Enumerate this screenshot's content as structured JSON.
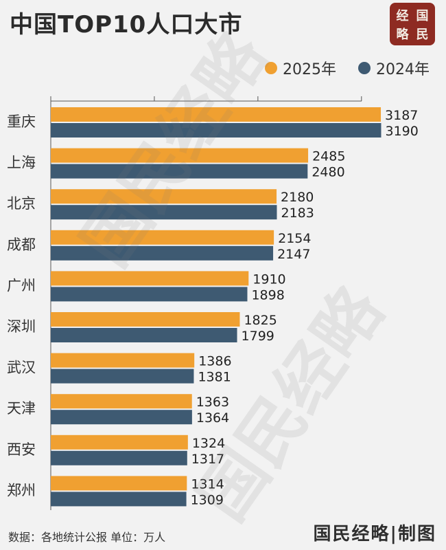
{
  "title": "中国TOP10人口大市",
  "logo": {
    "chars": [
      "经",
      "国",
      "略",
      "民"
    ]
  },
  "colors": {
    "series_2025": "#f0a031",
    "series_2024": "#3e5a72",
    "axis": "#555555"
  },
  "legend": {
    "item_2025": "2025年",
    "item_2024": "2024年"
  },
  "chart_data": {
    "type": "bar",
    "orientation": "horizontal",
    "categories": [
      "重庆",
      "上海",
      "北京",
      "成都",
      "广州",
      "深圳",
      "武汉",
      "天津",
      "西安",
      "郑州"
    ],
    "series": [
      {
        "name": "2025年",
        "values": [
          3187,
          2485,
          2180,
          2154,
          1910,
          1825,
          1386,
          1363,
          1324,
          1314
        ]
      },
      {
        "name": "2024年",
        "values": [
          3190,
          2480,
          2183,
          2147,
          1898,
          1799,
          1381,
          1364,
          1317,
          1309
        ]
      }
    ],
    "xlim": [
      0,
      3200
    ],
    "grid": false,
    "legend_position": "top-right"
  },
  "footer": {
    "source": "数据：各地统计公报   单位：万人",
    "brand": "国民经略|制图"
  },
  "watermark": "国民经略"
}
